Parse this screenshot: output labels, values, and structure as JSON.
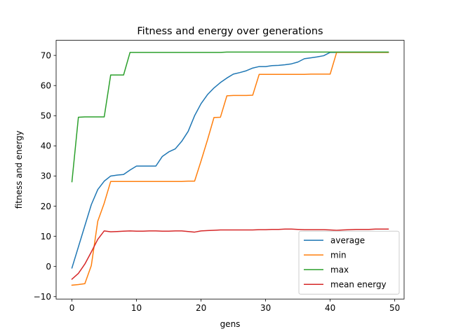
{
  "chart_data": {
    "type": "line",
    "title": "Fitness and energy over generations",
    "xlabel": "gens",
    "ylabel": "fitness and energy",
    "xlim": [
      -2.45,
      51.45
    ],
    "ylim": [
      -10.8,
      75
    ],
    "xticks": [
      0,
      10,
      20,
      30,
      40,
      50
    ],
    "yticks": [
      -10,
      0,
      10,
      20,
      30,
      40,
      50,
      60,
      70
    ],
    "grid": false,
    "legend_position": "lower-right",
    "x": [
      0,
      1,
      2,
      3,
      4,
      5,
      6,
      7,
      8,
      9,
      10,
      11,
      12,
      13,
      14,
      15,
      16,
      17,
      18,
      19,
      20,
      21,
      22,
      23,
      24,
      25,
      26,
      27,
      28,
      29,
      30,
      31,
      32,
      33,
      34,
      35,
      36,
      37,
      38,
      39,
      40,
      41,
      42,
      43,
      44,
      45,
      46,
      47,
      48,
      49
    ],
    "series": [
      {
        "name": "average",
        "color": "#1f77b4",
        "values": [
          -0.5,
          6.5,
          13.5,
          20.5,
          25.5,
          28.3,
          30.0,
          30.3,
          30.5,
          32.0,
          33.3,
          33.3,
          33.3,
          33.3,
          36.5,
          38.0,
          39.0,
          41.5,
          44.8,
          50.0,
          54.0,
          57.0,
          59.2,
          61.0,
          62.5,
          63.8,
          64.3,
          64.9,
          65.8,
          66.3,
          66.3,
          66.6,
          66.7,
          66.9,
          67.2,
          67.8,
          68.9,
          69.2,
          69.5,
          69.9,
          71.0,
          71.0,
          71.0,
          71.0,
          71.0,
          71.0,
          71.0,
          71.0,
          71.0,
          71.0
        ]
      },
      {
        "name": "min",
        "color": "#ff7f0e",
        "values": [
          -6.2,
          -6.0,
          -5.7,
          0.3,
          15.0,
          21.0,
          28.2,
          28.2,
          28.2,
          28.2,
          28.2,
          28.2,
          28.2,
          28.2,
          28.2,
          28.2,
          28.2,
          28.2,
          28.3,
          28.3,
          35.0,
          42.0,
          49.4,
          49.5,
          56.6,
          56.7,
          56.7,
          56.7,
          56.8,
          63.7,
          63.7,
          63.7,
          63.7,
          63.7,
          63.7,
          63.7,
          63.7,
          63.8,
          63.8,
          63.8,
          63.8,
          71.0,
          71.0,
          71.0,
          71.0,
          71.0,
          71.0,
          71.0,
          71.0,
          71.0
        ]
      },
      {
        "name": "max",
        "color": "#2ca02c",
        "values": [
          28.1,
          49.5,
          49.6,
          49.6,
          49.6,
          49.6,
          63.5,
          63.5,
          63.5,
          71.0,
          71.0,
          71.0,
          71.0,
          71.0,
          71.0,
          71.0,
          71.0,
          71.0,
          71.0,
          71.0,
          71.0,
          71.0,
          71.0,
          71.0,
          71.1,
          71.1,
          71.1,
          71.1,
          71.1,
          71.1,
          71.1,
          71.1,
          71.1,
          71.1,
          71.1,
          71.1,
          71.1,
          71.1,
          71.1,
          71.1,
          71.1,
          71.1,
          71.1,
          71.1,
          71.1,
          71.1,
          71.1,
          71.1,
          71.1,
          71.1
        ]
      },
      {
        "name": "mean energy",
        "color": "#d62728",
        "values": [
          -4.2,
          -2.3,
          0.8,
          4.8,
          9.0,
          11.8,
          11.5,
          11.6,
          11.7,
          11.8,
          11.7,
          11.7,
          11.8,
          11.8,
          11.7,
          11.7,
          11.8,
          11.8,
          11.6,
          11.4,
          11.8,
          11.9,
          12.0,
          12.1,
          12.1,
          12.1,
          12.1,
          12.1,
          12.1,
          12.2,
          12.2,
          12.3,
          12.3,
          12.4,
          12.4,
          12.3,
          12.2,
          12.2,
          12.2,
          12.2,
          12.1,
          12.0,
          12.1,
          12.2,
          12.3,
          12.3,
          12.3,
          12.4,
          12.4,
          12.4
        ]
      }
    ]
  }
}
